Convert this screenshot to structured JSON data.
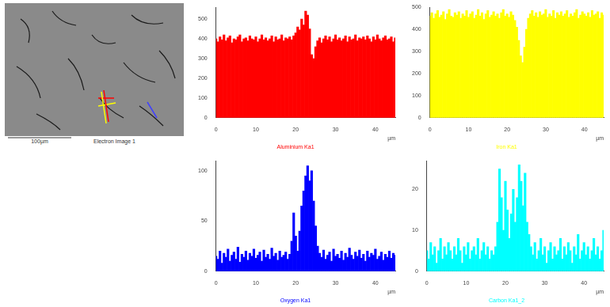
{
  "image": {
    "caption": "Electron Image 1",
    "scale_bar": "100µm"
  },
  "chart_data": [
    {
      "type": "bar",
      "title": "Aluminium Ka1",
      "xlabel": "µm",
      "color": "#ff0000",
      "grid": false,
      "xlim": [
        0,
        45
      ],
      "xticks": [
        0,
        10,
        20,
        30,
        40
      ],
      "ylim": [
        0,
        560
      ],
      "yticks": [
        0,
        100,
        200,
        300,
        400,
        500
      ],
      "x": [
        0,
        0.5,
        1,
        1.5,
        2,
        2.5,
        3,
        3.5,
        4,
        4.5,
        5,
        5.5,
        6,
        6.5,
        7,
        7.5,
        8,
        8.5,
        9,
        9.5,
        10,
        10.5,
        11,
        11.5,
        12,
        12.5,
        13,
        13.5,
        14,
        14.5,
        15,
        15.5,
        16,
        16.5,
        17,
        17.5,
        18,
        18.5,
        19,
        19.5,
        20,
        20.5,
        21,
        21.5,
        22,
        22.5,
        23,
        23.5,
        24,
        24.5,
        25,
        25.5,
        26,
        26.5,
        27,
        27.5,
        28,
        28.5,
        29,
        29.5,
        30,
        30.5,
        31,
        31.5,
        32,
        32.5,
        33,
        33.5,
        34,
        34.5,
        35,
        35.5,
        36,
        36.5,
        37,
        37.5,
        38,
        38.5,
        39,
        39.5,
        40,
        40.5,
        41,
        41.5,
        42,
        42.5,
        43,
        43.5,
        44,
        44.5,
        45
      ],
      "values": [
        400,
        385,
        410,
        395,
        420,
        390,
        405,
        415,
        380,
        400,
        395,
        410,
        420,
        385,
        400,
        405,
        390,
        415,
        400,
        395,
        410,
        385,
        400,
        420,
        395,
        405,
        390,
        400,
        415,
        385,
        410,
        395,
        400,
        420,
        390,
        405,
        400,
        410,
        395,
        415,
        430,
        460,
        445,
        500,
        470,
        540,
        520,
        450,
        320,
        300,
        360,
        390,
        405,
        380,
        400,
        415,
        395,
        410,
        385,
        400,
        420,
        395,
        405,
        390,
        400,
        415,
        385,
        410,
        395,
        400,
        420,
        390,
        405,
        400,
        410,
        395,
        415,
        400,
        385,
        410,
        395,
        420,
        400,
        390,
        405,
        415,
        395,
        400,
        410,
        385,
        405
      ]
    },
    {
      "type": "bar",
      "title": "Iron Ka1",
      "xlabel": "µm",
      "color": "#ffff00",
      "grid": false,
      "xlim": [
        0,
        45
      ],
      "xticks": [
        0,
        10,
        20,
        30,
        40
      ],
      "ylim": [
        0,
        500
      ],
      "yticks": [
        0,
        100,
        200,
        300,
        400,
        500
      ],
      "x": [
        0,
        0.5,
        1,
        1.5,
        2,
        2.5,
        3,
        3.5,
        4,
        4.5,
        5,
        5.5,
        6,
        6.5,
        7,
        7.5,
        8,
        8.5,
        9,
        9.5,
        10,
        10.5,
        11,
        11.5,
        12,
        12.5,
        13,
        13.5,
        14,
        14.5,
        15,
        15.5,
        16,
        16.5,
        17,
        17.5,
        18,
        18.5,
        19,
        19.5,
        20,
        20.5,
        21,
        21.5,
        22,
        22.5,
        23,
        23.5,
        24,
        24.5,
        25,
        25.5,
        26,
        26.5,
        27,
        27.5,
        28,
        28.5,
        29,
        29.5,
        30,
        30.5,
        31,
        31.5,
        32,
        32.5,
        33,
        33.5,
        34,
        34.5,
        35,
        35.5,
        36,
        36.5,
        37,
        37.5,
        38,
        38.5,
        39,
        39.5,
        40,
        40.5,
        41,
        41.5,
        42,
        42.5,
        43,
        43.5,
        44,
        44.5,
        45
      ],
      "values": [
        460,
        475,
        450,
        470,
        485,
        455,
        465,
        480,
        445,
        470,
        490,
        460,
        455,
        475,
        465,
        480,
        450,
        470,
        460,
        485,
        455,
        470,
        480,
        450,
        465,
        490,
        460,
        475,
        445,
        470,
        485,
        455,
        465,
        480,
        460,
        470,
        450,
        475,
        490,
        460,
        470,
        455,
        480,
        465,
        440,
        410,
        350,
        280,
        250,
        320,
        400,
        450,
        470,
        485,
        460,
        475,
        455,
        480,
        465,
        470,
        490,
        455,
        470,
        460,
        485,
        450,
        475,
        465,
        480,
        460,
        470,
        485,
        455,
        470,
        460,
        475,
        490,
        450,
        465,
        480,
        470,
        460,
        475,
        455,
        485,
        465,
        470,
        480,
        450,
        475,
        465
      ]
    },
    {
      "type": "bar",
      "title": "Oxygen Ka1",
      "xlabel": "µm",
      "color": "#0000ff",
      "grid": false,
      "xlim": [
        0,
        45
      ],
      "xticks": [
        0,
        10,
        20,
        30,
        40
      ],
      "ylim": [
        0,
        110
      ],
      "yticks": [
        0,
        50,
        100
      ],
      "x": [
        0,
        0.5,
        1,
        1.5,
        2,
        2.5,
        3,
        3.5,
        4,
        4.5,
        5,
        5.5,
        6,
        6.5,
        7,
        7.5,
        8,
        8.5,
        9,
        9.5,
        10,
        10.5,
        11,
        11.5,
        12,
        12.5,
        13,
        13.5,
        14,
        14.5,
        15,
        15.5,
        16,
        16.5,
        17,
        17.5,
        18,
        18.5,
        19,
        19.5,
        20,
        20.5,
        21,
        21.5,
        22,
        22.5,
        23,
        23.5,
        24,
        24.5,
        25,
        25.5,
        26,
        26.5,
        27,
        27.5,
        28,
        28.5,
        29,
        29.5,
        30,
        30.5,
        31,
        31.5,
        32,
        32.5,
        33,
        33.5,
        34,
        34.5,
        35,
        35.5,
        36,
        36.5,
        37,
        37.5,
        38,
        38.5,
        39,
        39.5,
        40,
        40.5,
        41,
        41.5,
        42,
        42.5,
        43,
        43.5,
        44,
        44.5,
        45
      ],
      "values": [
        15,
        12,
        20,
        8,
        18,
        14,
        22,
        10,
        16,
        19,
        12,
        24,
        9,
        17,
        14,
        20,
        11,
        18,
        15,
        22,
        13,
        16,
        19,
        10,
        21,
        14,
        17,
        12,
        23,
        15,
        18,
        11,
        20,
        14,
        16,
        19,
        12,
        17,
        30,
        58,
        35,
        20,
        40,
        65,
        80,
        95,
        105,
        90,
        100,
        70,
        45,
        25,
        18,
        14,
        21,
        12,
        16,
        19,
        10,
        22,
        15,
        17,
        13,
        20,
        11,
        18,
        14,
        23,
        16,
        12,
        19,
        15,
        21,
        13,
        17,
        10,
        20,
        14,
        18,
        16,
        22,
        12,
        15,
        19,
        11,
        17,
        14,
        20,
        13,
        18,
        16
      ]
    },
    {
      "type": "bar",
      "title": "Carbon Ka1_2",
      "xlabel": "µm",
      "color": "#00ffff",
      "grid": false,
      "xlim": [
        0,
        45
      ],
      "xticks": [
        0,
        10,
        20,
        30,
        40
      ],
      "ylim": [
        0,
        27
      ],
      "yticks": [
        0,
        10,
        20
      ],
      "x": [
        0,
        0.5,
        1,
        1.5,
        2,
        2.5,
        3,
        3.5,
        4,
        4.5,
        5,
        5.5,
        6,
        6.5,
        7,
        7.5,
        8,
        8.5,
        9,
        9.5,
        10,
        10.5,
        11,
        11.5,
        12,
        12.5,
        13,
        13.5,
        14,
        14.5,
        15,
        15.5,
        16,
        16.5,
        17,
        17.5,
        18,
        18.5,
        19,
        19.5,
        20,
        20.5,
        21,
        21.5,
        22,
        22.5,
        23,
        23.5,
        24,
        24.5,
        25,
        25.5,
        26,
        26.5,
        27,
        27.5,
        28,
        28.5,
        29,
        29.5,
        30,
        30.5,
        31,
        31.5,
        32,
        32.5,
        33,
        33.5,
        34,
        34.5,
        35,
        35.5,
        36,
        36.5,
        37,
        37.5,
        38,
        38.5,
        39,
        39.5,
        40,
        40.5,
        41,
        41.5,
        42,
        42.5,
        43,
        43.5,
        44,
        44.5,
        45
      ],
      "values": [
        5,
        3,
        7,
        4,
        6,
        2,
        5,
        8,
        3,
        6,
        4,
        7,
        5,
        3,
        6,
        4,
        8,
        5,
        2,
        6,
        4,
        7,
        3,
        5,
        6,
        4,
        8,
        3,
        5,
        7,
        4,
        6,
        3,
        5,
        4,
        6,
        12,
        25,
        18,
        10,
        22,
        15,
        8,
        14,
        20,
        12,
        18,
        26,
        22,
        16,
        24,
        12,
        9,
        6,
        4,
        7,
        3,
        5,
        8,
        4,
        6,
        2,
        5,
        7,
        3,
        6,
        4,
        5,
        8,
        3,
        6,
        4,
        7,
        5,
        2,
        6,
        4,
        9,
        3,
        5,
        7,
        4,
        6,
        3,
        5,
        8,
        4,
        6,
        3,
        5,
        10
      ]
    }
  ]
}
